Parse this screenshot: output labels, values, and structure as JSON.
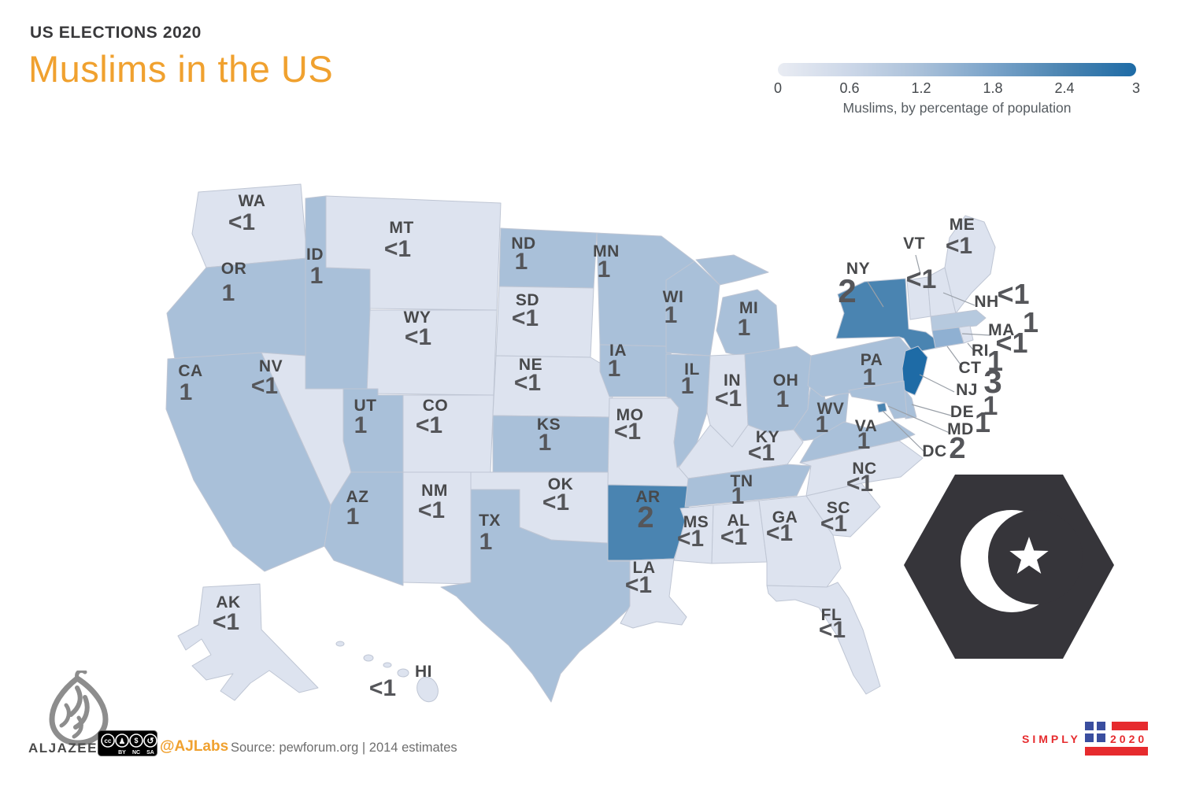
{
  "header": {
    "kicker": "US ELECTIONS 2020",
    "title": "Muslims in the US"
  },
  "legend": {
    "ticks": [
      "0",
      "0.6",
      "1.2",
      "1.8",
      "2.4",
      "3"
    ],
    "caption": "Muslims, by percentage of population",
    "range": [
      0,
      3
    ],
    "gradient": [
      "#e9ecf3",
      "#ccd7e8",
      "#a9c0d9",
      "#7aa3c9",
      "#4a84b1",
      "#1e6ba6"
    ]
  },
  "chart_data": {
    "type": "heatmap",
    "subtype": "us-choropleth-map",
    "title": "Muslims in the US",
    "unit": "percent of population",
    "legend_range": [
      0,
      3
    ],
    "palette": {
      "lt1": "#dde3ef",
      "one": "#a9c0d9",
      "two": "#4a84b1",
      "three": "#1e6ba6"
    },
    "states": [
      {
        "abbr": "WA",
        "value": "<1",
        "cat": "lt1"
      },
      {
        "abbr": "OR",
        "value": "1",
        "cat": "one"
      },
      {
        "abbr": "CA",
        "value": "1",
        "cat": "one"
      },
      {
        "abbr": "NV",
        "value": "<1",
        "cat": "lt1"
      },
      {
        "abbr": "ID",
        "value": "1",
        "cat": "one"
      },
      {
        "abbr": "MT",
        "value": "<1",
        "cat": "lt1"
      },
      {
        "abbr": "WY",
        "value": "<1",
        "cat": "lt1"
      },
      {
        "abbr": "UT",
        "value": "1",
        "cat": "one"
      },
      {
        "abbr": "CO",
        "value": "<1",
        "cat": "lt1"
      },
      {
        "abbr": "AZ",
        "value": "1",
        "cat": "one"
      },
      {
        "abbr": "NM",
        "value": "<1",
        "cat": "lt1"
      },
      {
        "abbr": "ND",
        "value": "1",
        "cat": "one"
      },
      {
        "abbr": "SD",
        "value": "<1",
        "cat": "lt1"
      },
      {
        "abbr": "NE",
        "value": "<1",
        "cat": "lt1"
      },
      {
        "abbr": "KS",
        "value": "1",
        "cat": "one"
      },
      {
        "abbr": "OK",
        "value": "<1",
        "cat": "lt1"
      },
      {
        "abbr": "TX",
        "value": "1",
        "cat": "one"
      },
      {
        "abbr": "MN",
        "value": "1",
        "cat": "one"
      },
      {
        "abbr": "IA",
        "value": "1",
        "cat": "one"
      },
      {
        "abbr": "MO",
        "value": "<1",
        "cat": "lt1"
      },
      {
        "abbr": "AR",
        "value": "2",
        "cat": "two"
      },
      {
        "abbr": "LA",
        "value": "<1",
        "cat": "lt1"
      },
      {
        "abbr": "WI",
        "value": "1",
        "cat": "one"
      },
      {
        "abbr": "IL",
        "value": "1",
        "cat": "one"
      },
      {
        "abbr": "MI",
        "value": "1",
        "cat": "one"
      },
      {
        "abbr": "IN",
        "value": "<1",
        "cat": "lt1"
      },
      {
        "abbr": "OH",
        "value": "1",
        "cat": "one"
      },
      {
        "abbr": "KY",
        "value": "<1",
        "cat": "lt1"
      },
      {
        "abbr": "TN",
        "value": "1",
        "cat": "one"
      },
      {
        "abbr": "MS",
        "value": "<1",
        "cat": "lt1"
      },
      {
        "abbr": "AL",
        "value": "<1",
        "cat": "lt1"
      },
      {
        "abbr": "GA",
        "value": "<1",
        "cat": "lt1"
      },
      {
        "abbr": "SC",
        "value": "<1",
        "cat": "lt1"
      },
      {
        "abbr": "NC",
        "value": "<1",
        "cat": "lt1"
      },
      {
        "abbr": "FL",
        "value": "<1",
        "cat": "lt1"
      },
      {
        "abbr": "WV",
        "value": "1",
        "cat": "one"
      },
      {
        "abbr": "VA",
        "value": "1",
        "cat": "one"
      },
      {
        "abbr": "PA",
        "value": "1",
        "cat": "one"
      },
      {
        "abbr": "NY",
        "value": "2",
        "cat": "two"
      },
      {
        "abbr": "VT",
        "value": "<1",
        "cat": "lt1"
      },
      {
        "abbr": "NH",
        "value": "<1",
        "cat": "lt1"
      },
      {
        "abbr": "ME",
        "value": "<1",
        "cat": "lt1"
      },
      {
        "abbr": "MA",
        "value": "1",
        "cat": "one",
        "fill": "#b6c9de"
      },
      {
        "abbr": "RI",
        "value": "<1",
        "cat": "lt1"
      },
      {
        "abbr": "CT",
        "value": "1",
        "cat": "one",
        "fill": "#8fb0d2"
      },
      {
        "abbr": "NJ",
        "value": "3",
        "cat": "three"
      },
      {
        "abbr": "DE",
        "value": "1",
        "cat": "one"
      },
      {
        "abbr": "MD",
        "value": "1",
        "cat": "one"
      },
      {
        "abbr": "DC",
        "value": "2",
        "cat": "two"
      },
      {
        "abbr": "AK",
        "value": "<1",
        "cat": "lt1"
      },
      {
        "abbr": "HI",
        "value": "<1",
        "cat": "lt1"
      }
    ]
  },
  "emblem": {
    "icon": "crescent-and-star-icon",
    "shape": "hexagon",
    "color": "#36353a"
  },
  "footer": {
    "brand": "ALJAZEERA",
    "license": {
      "badges": [
        "cc",
        "♟",
        "$",
        "↺"
      ],
      "labels": [
        "BY",
        "NC",
        "SA"
      ]
    },
    "handle": "@AJLabs",
    "source": "Source: pewforum.org | 2014 estimates"
  },
  "badge": {
    "word": "SIMPLY",
    "year": "2020",
    "red": "#e62b2e",
    "blue": "#3a4e9f"
  }
}
